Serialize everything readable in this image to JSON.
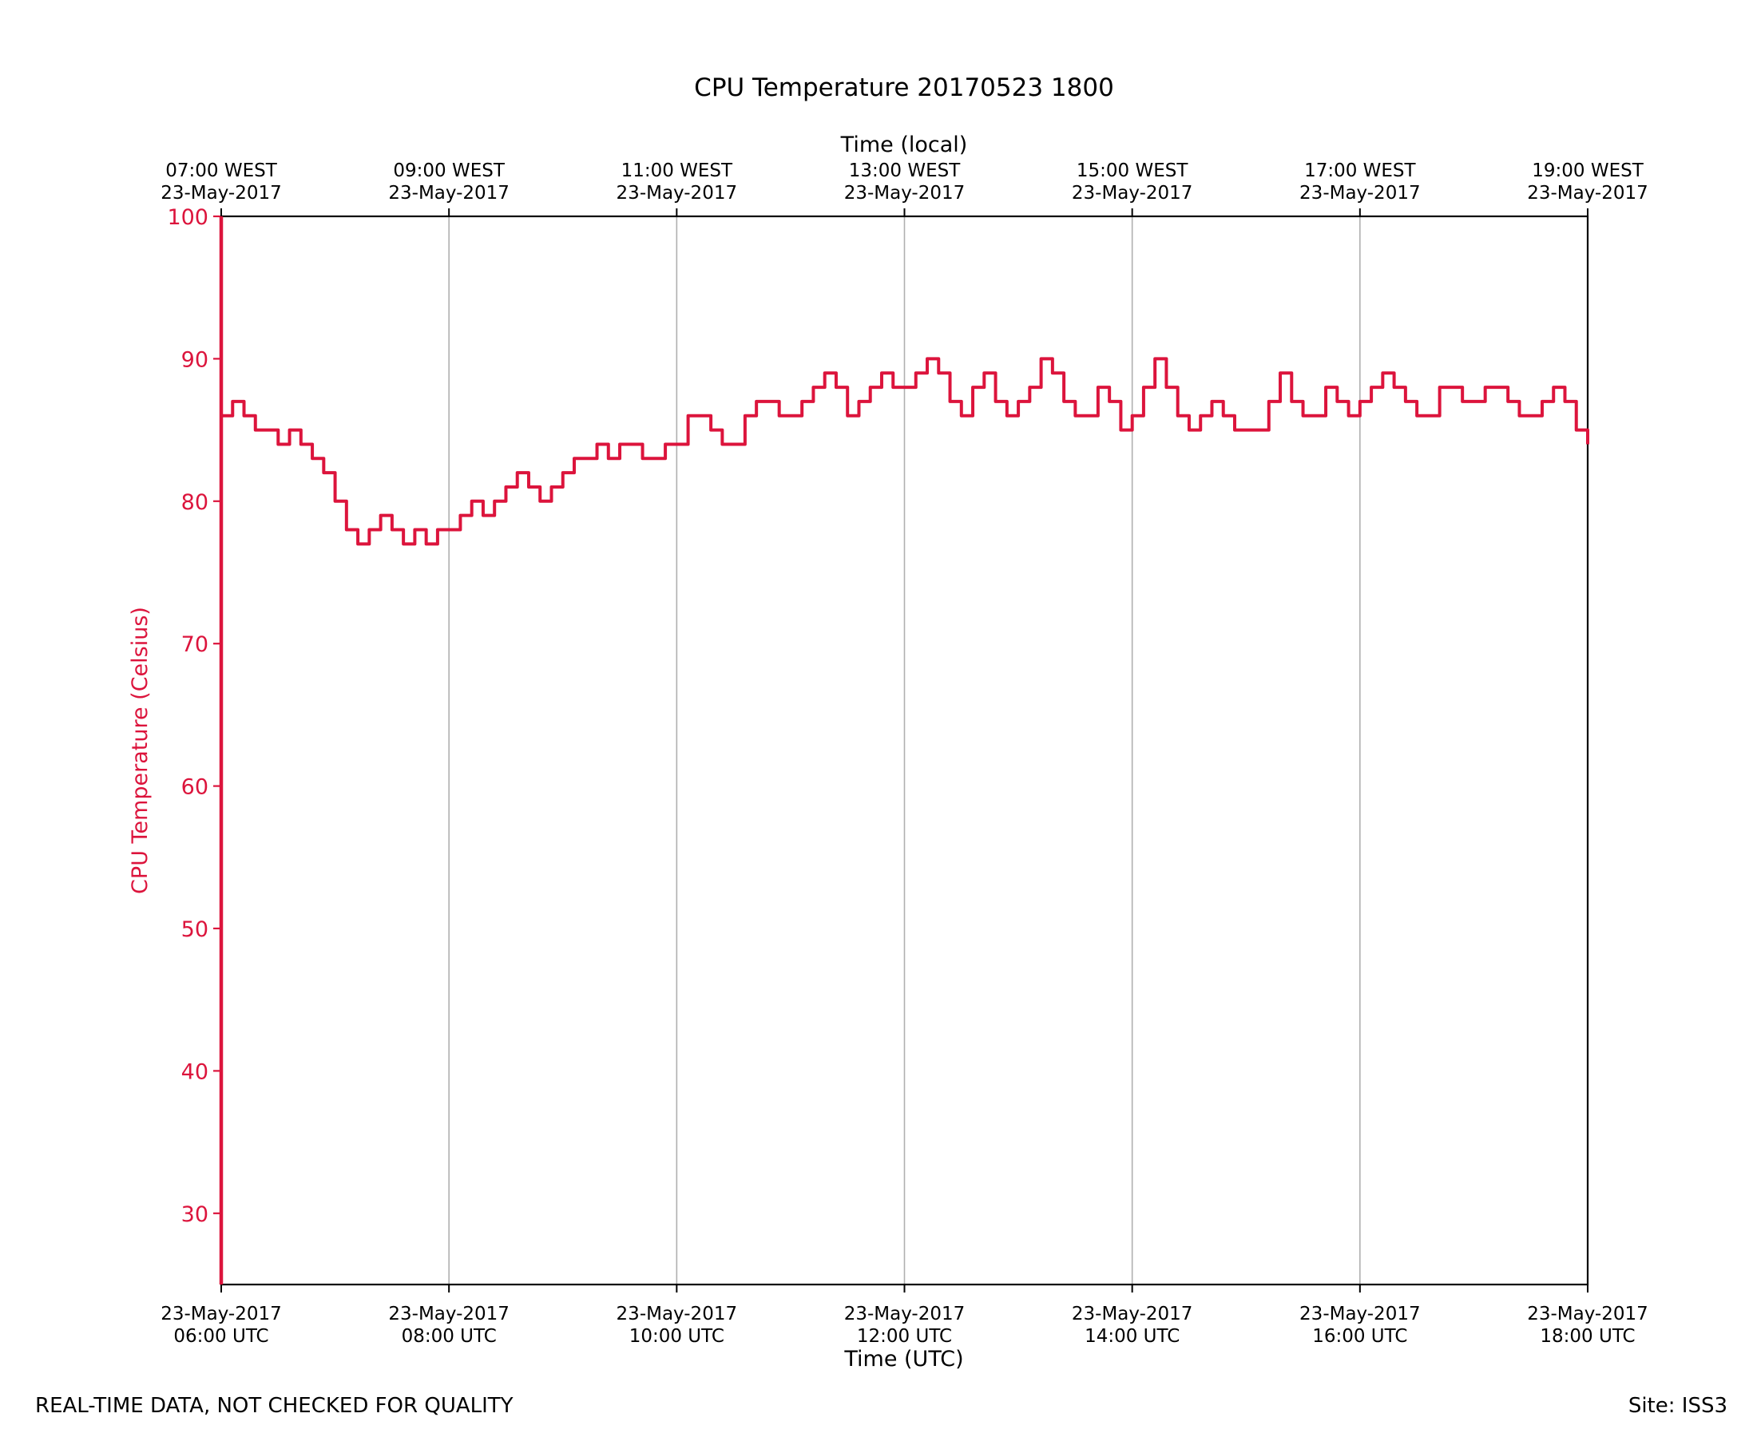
{
  "chart_data": {
    "type": "line",
    "title": "CPU Temperature 20170523 1800",
    "xlabel": "Time (UTC)",
    "xlabel_top": "Time (local)",
    "ylabel": "CPU Temperature (Celsius)",
    "ylim": [
      25,
      100
    ],
    "xlim_hours_utc": [
      6,
      18
    ],
    "grid": "vertical lines at each x tick",
    "y_ticks": [
      30,
      40,
      50,
      60,
      70,
      80,
      90,
      100
    ],
    "x_ticks_bottom": [
      {
        "hour": 6,
        "line1": "23-May-2017",
        "line2": "06:00 UTC"
      },
      {
        "hour": 8,
        "line1": "23-May-2017",
        "line2": "08:00 UTC"
      },
      {
        "hour": 10,
        "line1": "23-May-2017",
        "line2": "10:00 UTC"
      },
      {
        "hour": 12,
        "line1": "23-May-2017",
        "line2": "12:00 UTC"
      },
      {
        "hour": 14,
        "line1": "23-May-2017",
        "line2": "14:00 UTC"
      },
      {
        "hour": 16,
        "line1": "23-May-2017",
        "line2": "16:00 UTC"
      },
      {
        "hour": 18,
        "line1": "23-May-2017",
        "line2": "18:00 UTC"
      }
    ],
    "x_ticks_top": [
      {
        "hour": 6,
        "line1": "07:00 WEST",
        "line2": "23-May-2017"
      },
      {
        "hour": 8,
        "line1": "09:00 WEST",
        "line2": "23-May-2017"
      },
      {
        "hour": 10,
        "line1": "11:00 WEST",
        "line2": "23-May-2017"
      },
      {
        "hour": 12,
        "line1": "13:00 WEST",
        "line2": "23-May-2017"
      },
      {
        "hour": 14,
        "line1": "15:00 WEST",
        "line2": "23-May-2017"
      },
      {
        "hour": 16,
        "line1": "17:00 WEST",
        "line2": "23-May-2017"
      },
      {
        "hour": 18,
        "line1": "19:00 WEST",
        "line2": "23-May-2017"
      }
    ],
    "series": [
      {
        "name": "CPU Temperature",
        "color": "#dc143c",
        "x_hours_utc": [
          6.0,
          6.1,
          6.2,
          6.3,
          6.4,
          6.5,
          6.6,
          6.7,
          6.8,
          6.9,
          7.0,
          7.1,
          7.2,
          7.3,
          7.4,
          7.5,
          7.6,
          7.7,
          7.8,
          7.9,
          8.0,
          8.1,
          8.2,
          8.3,
          8.4,
          8.5,
          8.6,
          8.7,
          8.8,
          8.9,
          9.0,
          9.1,
          9.2,
          9.3,
          9.4,
          9.5,
          9.6,
          9.7,
          9.8,
          9.9,
          10.0,
          10.1,
          10.2,
          10.3,
          10.4,
          10.5,
          10.6,
          10.7,
          10.8,
          10.9,
          11.0,
          11.1,
          11.2,
          11.3,
          11.4,
          11.5,
          11.6,
          11.7,
          11.8,
          11.9,
          12.0,
          12.1,
          12.2,
          12.3,
          12.4,
          12.5,
          12.6,
          12.7,
          12.8,
          12.9,
          13.0,
          13.1,
          13.2,
          13.3,
          13.4,
          13.5,
          13.6,
          13.7,
          13.8,
          13.9,
          14.0,
          14.1,
          14.2,
          14.3,
          14.4,
          14.5,
          14.6,
          14.7,
          14.8,
          14.9,
          15.0,
          15.1,
          15.2,
          15.3,
          15.4,
          15.5,
          15.6,
          15.7,
          15.8,
          15.9,
          16.0,
          16.1,
          16.2,
          16.3,
          16.4,
          16.5,
          16.6,
          16.7,
          16.8,
          16.9,
          17.0,
          17.1,
          17.2,
          17.3,
          17.4,
          17.5,
          17.6,
          17.7,
          17.8,
          17.9,
          18.0
        ],
        "values": [
          86,
          87,
          86,
          85,
          85,
          84,
          85,
          84,
          83,
          82,
          80,
          78,
          77,
          78,
          79,
          78,
          77,
          78,
          77,
          78,
          78,
          79,
          80,
          79,
          80,
          81,
          82,
          81,
          80,
          81,
          82,
          83,
          83,
          84,
          83,
          84,
          84,
          83,
          83,
          84,
          84,
          86,
          86,
          85,
          84,
          84,
          86,
          87,
          87,
          86,
          86,
          87,
          88,
          89,
          88,
          86,
          87,
          88,
          89,
          88,
          88,
          89,
          90,
          89,
          87,
          86,
          88,
          89,
          87,
          86,
          87,
          88,
          90,
          89,
          87,
          86,
          86,
          88,
          87,
          85,
          86,
          88,
          90,
          88,
          86,
          85,
          86,
          87,
          86,
          85,
          85,
          85,
          87,
          89,
          87,
          86,
          86,
          88,
          87,
          86,
          87,
          88,
          89,
          88,
          87,
          86,
          86,
          88,
          88,
          87,
          87,
          88,
          88,
          87,
          86,
          86,
          87,
          88,
          87,
          85,
          84
        ]
      }
    ]
  },
  "footer": {
    "left_note": "REAL-TIME DATA, NOT CHECKED FOR QUALITY",
    "site": "Site: ISS3"
  }
}
